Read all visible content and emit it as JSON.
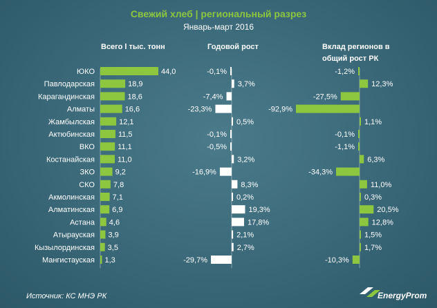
{
  "title": "Свежий хлеб | региональный разрез",
  "subtitle": "Январь-март 2016",
  "source": "Источник: КС МНЭ РК",
  "logo": "EnergyProm",
  "colors": {
    "bar_green": "#8dc63f",
    "bar_white": "#ffffff",
    "title": "#8dc63f"
  },
  "chart_data": {
    "type": "bar",
    "orientation": "horizontal",
    "categories": [
      "ЮКО",
      "Павлодарская",
      "Карагандинская",
      "Алматы",
      "Жамбылская",
      "Актюбинская",
      "ВКО",
      "Костанайская",
      "ЗКО",
      "СКО",
      "Акмолинская",
      "Алматинская",
      "Астана",
      "Атырауская",
      "Кызылординская",
      "Мангистауская"
    ],
    "series": [
      {
        "name": "Всего l тыс. тонн",
        "values": [
          44.0,
          18.9,
          18.6,
          16.6,
          12.1,
          11.5,
          11.1,
          11.0,
          9.2,
          7.8,
          7.1,
          6.9,
          4.6,
          3.9,
          3.5,
          1.3
        ],
        "labels": [
          "44,0",
          "18,9",
          "18,6",
          "16,6",
          "12,1",
          "11,5",
          "11,1",
          "11,0",
          "9,2",
          "7,8",
          "7,1",
          "6,9",
          "4,6",
          "3,9",
          "3,5",
          "1,3"
        ]
      },
      {
        "name": "Годовой рост",
        "values": [
          -0.1,
          3.7,
          -7.4,
          -23.3,
          0.5,
          -0.1,
          -0.5,
          3.2,
          -16.9,
          8.3,
          0.2,
          19.3,
          17.8,
          2.1,
          2.7,
          -29.7
        ],
        "labels": [
          "-0,1%",
          "3,7%",
          "-7,4%",
          "-23,3%",
          "0,5%",
          "-0,1%",
          "-0,5%",
          "3,2%",
          "-16,9%",
          "8,3%",
          "0,2%",
          "19,3%",
          "17,8%",
          "2,1%",
          "2,7%",
          "-29,7%"
        ]
      },
      {
        "name_lines": [
          "Вклад регионов в",
          "общий рост РК"
        ],
        "values": [
          -1.2,
          12.3,
          -27.5,
          -92.9,
          1.1,
          -0.1,
          -1.1,
          6.3,
          -34.3,
          11.0,
          0.3,
          20.5,
          12.8,
          1.5,
          1.7,
          -10.3
        ],
        "labels": [
          "-1,2%",
          "12,3%",
          "-27,5%",
          "-92,9%",
          "1,1%",
          "-0,1%",
          "-1,1%",
          "6,3%",
          "-34,3%",
          "11,0%",
          "0,3%",
          "20,5%",
          "12,8%",
          "1,5%",
          "1,7%",
          "-10,3%"
        ]
      }
    ],
    "legend": "none",
    "grid": false
  }
}
